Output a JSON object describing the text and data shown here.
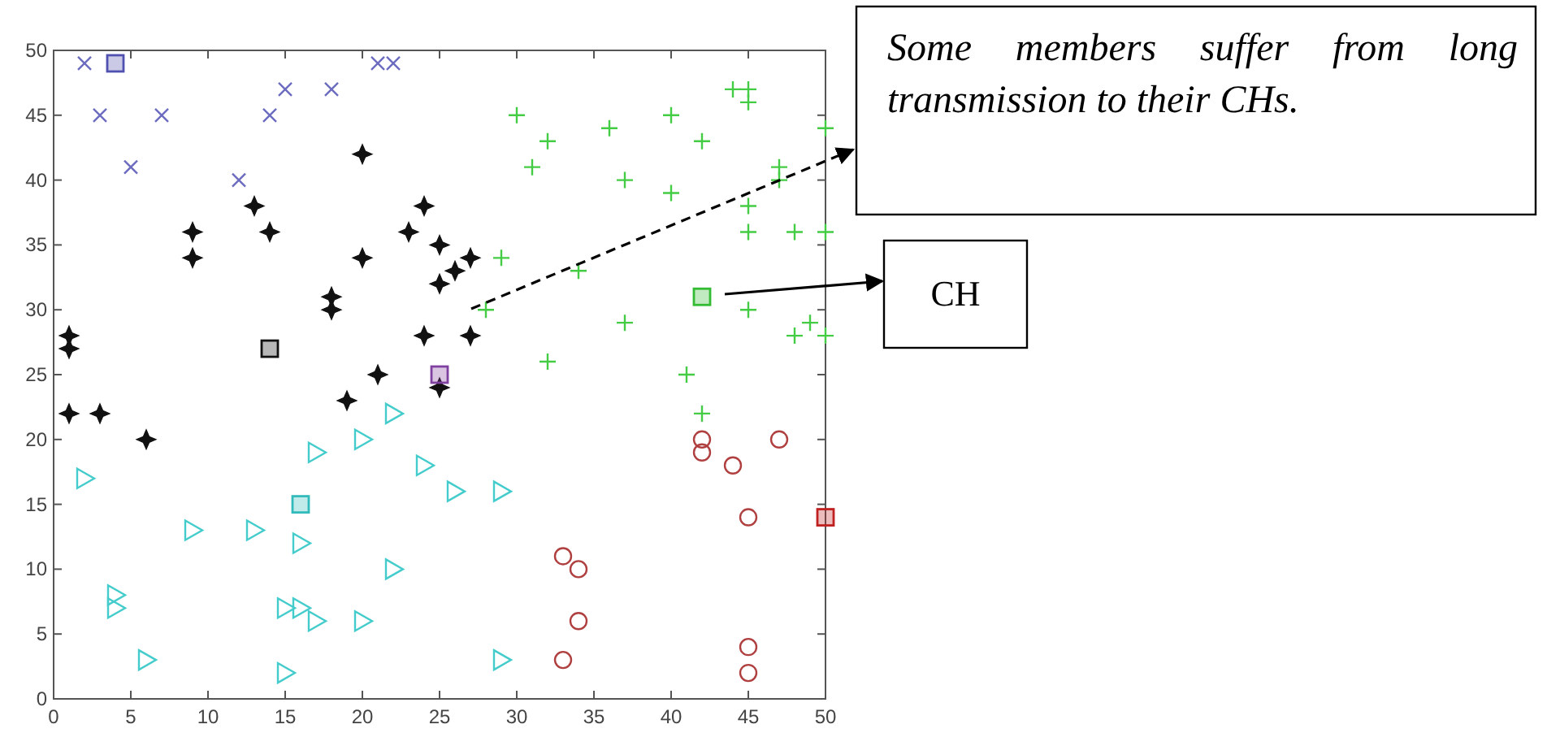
{
  "chart_data": {
    "type": "scatter",
    "xlim": [
      0,
      50
    ],
    "ylim": [
      0,
      50
    ],
    "xticks": [
      0,
      5,
      10,
      15,
      20,
      25,
      30,
      35,
      40,
      45,
      50
    ],
    "yticks": [
      0,
      5,
      10,
      15,
      20,
      25,
      30,
      35,
      40,
      45,
      50
    ],
    "grid": false,
    "series": [
      {
        "color": "#6b6bc0",
        "marker": "x",
        "x": [
          2,
          3,
          5,
          7,
          12,
          14,
          15,
          18,
          21,
          22
        ],
        "values": [
          49,
          45,
          41,
          45,
          40,
          45,
          47,
          47,
          49,
          49
        ]
      },
      {
        "color": "#111111",
        "marker": "star",
        "x": [
          1,
          1,
          1,
          3,
          6,
          9,
          9,
          13,
          14,
          18,
          18,
          19,
          20,
          20,
          21,
          23,
          24,
          24,
          25,
          25,
          25,
          26,
          27,
          27
        ],
        "values": [
          28,
          27,
          22,
          22,
          20,
          36,
          34,
          38,
          36,
          31,
          30,
          23,
          42,
          34,
          25,
          36,
          38,
          28,
          35,
          32,
          24,
          33,
          34,
          28
        ]
      },
      {
        "color": "#44cc44",
        "marker": "cross",
        "x": [
          30,
          31,
          32,
          36,
          40,
          42,
          37,
          40,
          44,
          45,
          45,
          50,
          47,
          47,
          45,
          45,
          48,
          50,
          29,
          34,
          28,
          32,
          37,
          45,
          48,
          49,
          50,
          41,
          42
        ],
        "values": [
          45,
          41,
          43,
          44,
          45,
          43,
          40,
          39,
          47,
          47,
          46,
          44,
          41,
          40,
          38,
          36,
          36,
          36,
          34,
          33,
          30,
          26,
          29,
          30,
          28,
          29,
          28,
          25,
          22
        ]
      },
      {
        "color": "#44cccc",
        "marker": "triangle",
        "x": [
          2,
          4,
          4,
          6,
          9,
          13,
          15,
          15,
          16,
          16,
          17,
          17,
          20,
          20,
          22,
          22,
          24,
          26,
          29,
          29
        ],
        "values": [
          17,
          8,
          7,
          3,
          13,
          13,
          7,
          2,
          7,
          12,
          6,
          19,
          20,
          6,
          22,
          10,
          18,
          16,
          16,
          3
        ]
      },
      {
        "color": "#b04040",
        "marker": "circle",
        "x": [
          33,
          34,
          34,
          33,
          42,
          42,
          44,
          47,
          45,
          45,
          45
        ],
        "values": [
          11,
          10,
          6,
          3,
          20,
          19,
          18,
          20,
          14,
          4,
          2
        ]
      },
      {
        "marker": "square",
        "colors": [
          "#5050b0",
          "#111111",
          "#8040a0",
          "#33bb33",
          "#33bbbb",
          "#c02020"
        ],
        "x": [
          4,
          14,
          25,
          42,
          16,
          50
        ],
        "values": [
          49,
          27,
          25,
          31,
          15,
          14
        ]
      }
    ],
    "annotations": [
      "Some members suffer from long transmission to their CHs.",
      "CH"
    ]
  }
}
